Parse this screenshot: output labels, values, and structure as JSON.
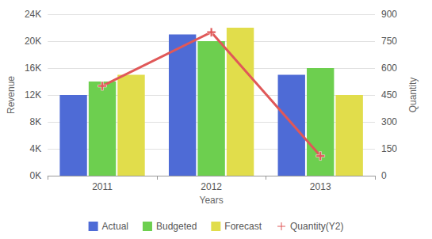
{
  "chart_data": {
    "type": "bar",
    "x_label": "Years",
    "y_label": "Revenue",
    "y2_label": "Quantity",
    "categories": [
      "2011",
      "2012",
      "2013"
    ],
    "series": [
      {
        "name": "Actual",
        "color": "#4e6bd6",
        "values": [
          12000,
          21000,
          15000
        ]
      },
      {
        "name": "Budgeted",
        "color": "#6dcf4f",
        "values": [
          14000,
          20000,
          16000
        ]
      },
      {
        "name": "Forecast",
        "color": "#e1dd4b",
        "values": [
          15000,
          22000,
          12000
        ]
      },
      {
        "name": "Quantity(Y2)",
        "type": "line",
        "axis": "y2",
        "color": "#e05858",
        "marker": "plus",
        "values": [
          500,
          800,
          110
        ]
      }
    ],
    "ylim": [
      0,
      24000
    ],
    "yticks": [
      {
        "value": 0,
        "label": "0K"
      },
      {
        "value": 4000,
        "label": "4K"
      },
      {
        "value": 8000,
        "label": "8K"
      },
      {
        "value": 12000,
        "label": "12K"
      },
      {
        "value": 16000,
        "label": "16K"
      },
      {
        "value": 20000,
        "label": "20K"
      },
      {
        "value": 24000,
        "label": "24K"
      }
    ],
    "y2lim": [
      0,
      900
    ],
    "y2ticks": [
      0,
      150,
      300,
      450,
      600,
      750,
      900
    ],
    "grid": true,
    "legend": "bottom"
  }
}
